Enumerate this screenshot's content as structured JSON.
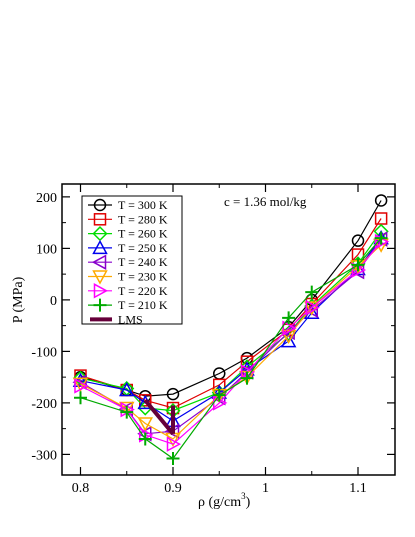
{
  "chart_data": {
    "type": "line",
    "annotation": "c = 1.36 mol/kg",
    "xlabel_main": "ρ  (g/cm",
    "xlabel_sup": "3",
    "xlabel_tail": ")",
    "ylabel": "P (MPa)",
    "xlim": [
      0.78,
      1.14
    ],
    "ylim": [
      -340,
      225
    ],
    "x_ticks": [
      {
        "value": 0.8,
        "label": "0.8"
      },
      {
        "value": 0.9,
        "label": "0.9"
      },
      {
        "value": 1.0,
        "label": "1"
      },
      {
        "value": 1.1,
        "label": "1.1"
      }
    ],
    "y_ticks": [
      {
        "value": 200,
        "label": "200"
      },
      {
        "value": 100,
        "label": "100"
      },
      {
        "value": 0,
        "label": "0"
      },
      {
        "value": -100,
        "label": "-100"
      },
      {
        "value": -200,
        "label": "-200"
      },
      {
        "value": -300,
        "label": "-300"
      }
    ],
    "grid": false,
    "legend_position": "top-left",
    "series": [
      {
        "name": "T = 300 K",
        "color": "#000000",
        "marker": "circle",
        "x": [
          0.8,
          0.85,
          0.87,
          0.9,
          0.95,
          0.98,
          1.025,
          1.05,
          1.1,
          1.125
        ],
        "y": [
          -150,
          -175,
          -187,
          -183,
          -143,
          -113,
          -53,
          0,
          115,
          193
        ]
      },
      {
        "name": "T = 280 K",
        "color": "#e00000",
        "marker": "square",
        "x": [
          0.8,
          0.85,
          0.87,
          0.9,
          0.95,
          0.98,
          1.025,
          1.05,
          1.1,
          1.125
        ],
        "y": [
          -147,
          -175,
          -195,
          -210,
          -165,
          -120,
          -58,
          -8,
          88,
          158
        ]
      },
      {
        "name": "T = 260 K",
        "color": "#00dd00",
        "marker": "diamond",
        "x": [
          0.8,
          0.85,
          0.87,
          0.9,
          0.95,
          0.98,
          1.025,
          1.05,
          1.1,
          1.125
        ],
        "y": [
          -152,
          -172,
          -210,
          -215,
          -180,
          -130,
          -65,
          -12,
          70,
          133
        ]
      },
      {
        "name": "T = 250 K",
        "color": "#0000ee",
        "marker": "triangle-up",
        "x": [
          0.8,
          0.85,
          0.87,
          0.9,
          0.95,
          0.98,
          1.025,
          1.05,
          1.1,
          1.125
        ],
        "y": [
          -157,
          -175,
          -200,
          -235,
          -180,
          -135,
          -80,
          -25,
          60,
          120
        ]
      },
      {
        "name": "T = 240 K",
        "color": "#8800cc",
        "marker": "triangle-left",
        "x": [
          0.8,
          0.85,
          0.87,
          0.9,
          0.95,
          0.98,
          1.025,
          1.05,
          1.1,
          1.125
        ],
        "y": [
          -160,
          -212,
          -260,
          -255,
          -190,
          -140,
          -63,
          -20,
          55,
          118
        ]
      },
      {
        "name": "T = 230 K",
        "color": "#ffaa00",
        "marker": "triangle-down",
        "x": [
          0.8,
          0.85,
          0.87,
          0.9,
          0.95,
          0.98,
          1.025,
          1.05,
          1.1,
          1.125
        ],
        "y": [
          -163,
          -210,
          -240,
          -270,
          -185,
          -150,
          -70,
          -15,
          65,
          107
        ]
      },
      {
        "name": "T = 220 K",
        "color": "#ff00ff",
        "marker": "triangle-right",
        "x": [
          0.8,
          0.85,
          0.87,
          0.9,
          0.95,
          0.98,
          1.025,
          1.05,
          1.1,
          1.125
        ],
        "y": [
          -167,
          -213,
          -262,
          -280,
          -200,
          -140,
          -55,
          -15,
          58,
          113
        ]
      },
      {
        "name": "T = 210 K",
        "color": "#00aa00",
        "marker": "plus",
        "x": [
          0.8,
          0.85,
          0.87,
          0.9,
          0.95,
          0.98,
          1.025,
          1.05,
          1.1,
          1.125
        ],
        "y": [
          -190,
          -218,
          -270,
          -308,
          -185,
          -152,
          -35,
          15,
          68,
          120
        ]
      }
    ],
    "lms": {
      "name": "LMS",
      "color": "#66003a",
      "x": [
        0.87,
        0.9
      ],
      "y_low": [
        -195,
        -205
      ],
      "y_high": [
        -195,
        -260
      ]
    }
  }
}
